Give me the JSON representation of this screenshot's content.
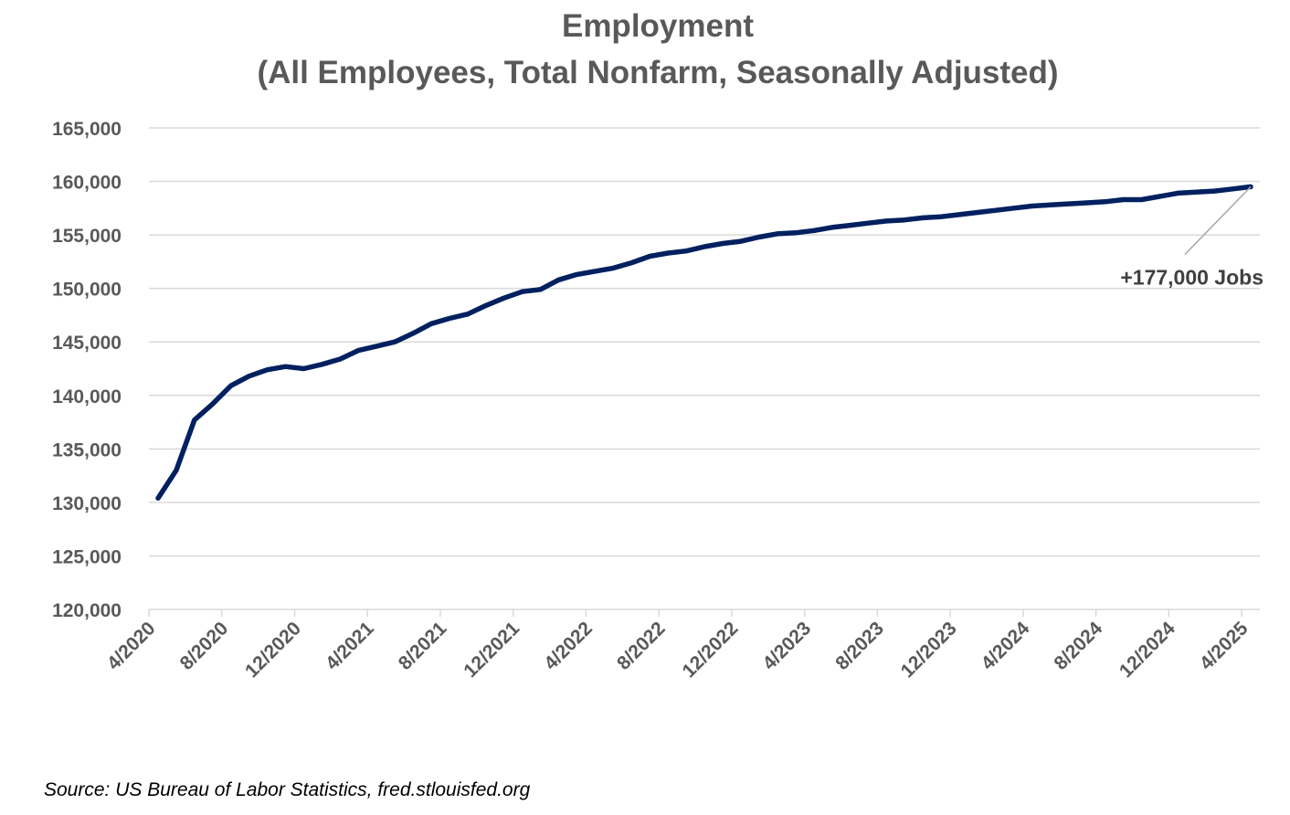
{
  "chart_data": {
    "type": "line",
    "title": "Employment",
    "subtitle": "(All Employees, Total Nonfarm, Seasonally Adjusted)",
    "xlabel": "",
    "ylabel": "",
    "ylim": [
      120000,
      165000
    ],
    "yticks": [
      120000,
      125000,
      130000,
      135000,
      140000,
      145000,
      150000,
      155000,
      160000,
      165000
    ],
    "ytick_labels": [
      "120,000",
      "125,000",
      "130,000",
      "135,000",
      "140,000",
      "145,000",
      "150,000",
      "155,000",
      "160,000",
      "165,000"
    ],
    "xtick_labels": [
      "4/2020",
      "8/2020",
      "12/2020",
      "4/2021",
      "8/2021",
      "12/2021",
      "4/2022",
      "8/2022",
      "12/2022",
      "4/2023",
      "8/2023",
      "12/2023",
      "4/2024",
      "8/2024",
      "12/2024",
      "4/2025"
    ],
    "grid": true,
    "line_color": "#002060",
    "series": [
      {
        "name": "Employment",
        "x": [
          "4/2020",
          "5/2020",
          "6/2020",
          "7/2020",
          "8/2020",
          "9/2020",
          "10/2020",
          "11/2020",
          "12/2020",
          "1/2021",
          "2/2021",
          "3/2021",
          "4/2021",
          "5/2021",
          "6/2021",
          "7/2021",
          "8/2021",
          "9/2021",
          "10/2021",
          "11/2021",
          "12/2021",
          "1/2022",
          "2/2022",
          "3/2022",
          "4/2022",
          "5/2022",
          "6/2022",
          "7/2022",
          "8/2022",
          "9/2022",
          "10/2022",
          "11/2022",
          "12/2022",
          "1/2023",
          "2/2023",
          "3/2023",
          "4/2023",
          "5/2023",
          "6/2023",
          "7/2023",
          "8/2023",
          "9/2023",
          "10/2023",
          "11/2023",
          "12/2023",
          "1/2024",
          "2/2024",
          "3/2024",
          "4/2024",
          "5/2024",
          "6/2024",
          "7/2024",
          "8/2024",
          "9/2024",
          "10/2024",
          "11/2024",
          "12/2024",
          "1/2025",
          "2/2025",
          "3/2025",
          "4/2025"
        ],
        "values": [
          130400,
          133000,
          137700,
          139200,
          140900,
          141800,
          142400,
          142700,
          142500,
          142900,
          143400,
          144200,
          144600,
          145000,
          145800,
          146700,
          147200,
          147600,
          148400,
          149100,
          149700,
          149900,
          150800,
          151300,
          151600,
          151900,
          152400,
          153000,
          153300,
          153500,
          153900,
          154200,
          154400,
          154800,
          155100,
          155200,
          155400,
          155700,
          155900,
          156100,
          156300,
          156400,
          156600,
          156700,
          156900,
          157100,
          157300,
          157500,
          157700,
          157800,
          157900,
          158000,
          158100,
          158300,
          158300,
          158600,
          158900,
          159000,
          159100,
          159300,
          159500
        ]
      }
    ],
    "annotation": "+177,000 Jobs"
  },
  "source": "Source: US Bureau of Labor Statistics, fred.stlouisfed.org"
}
